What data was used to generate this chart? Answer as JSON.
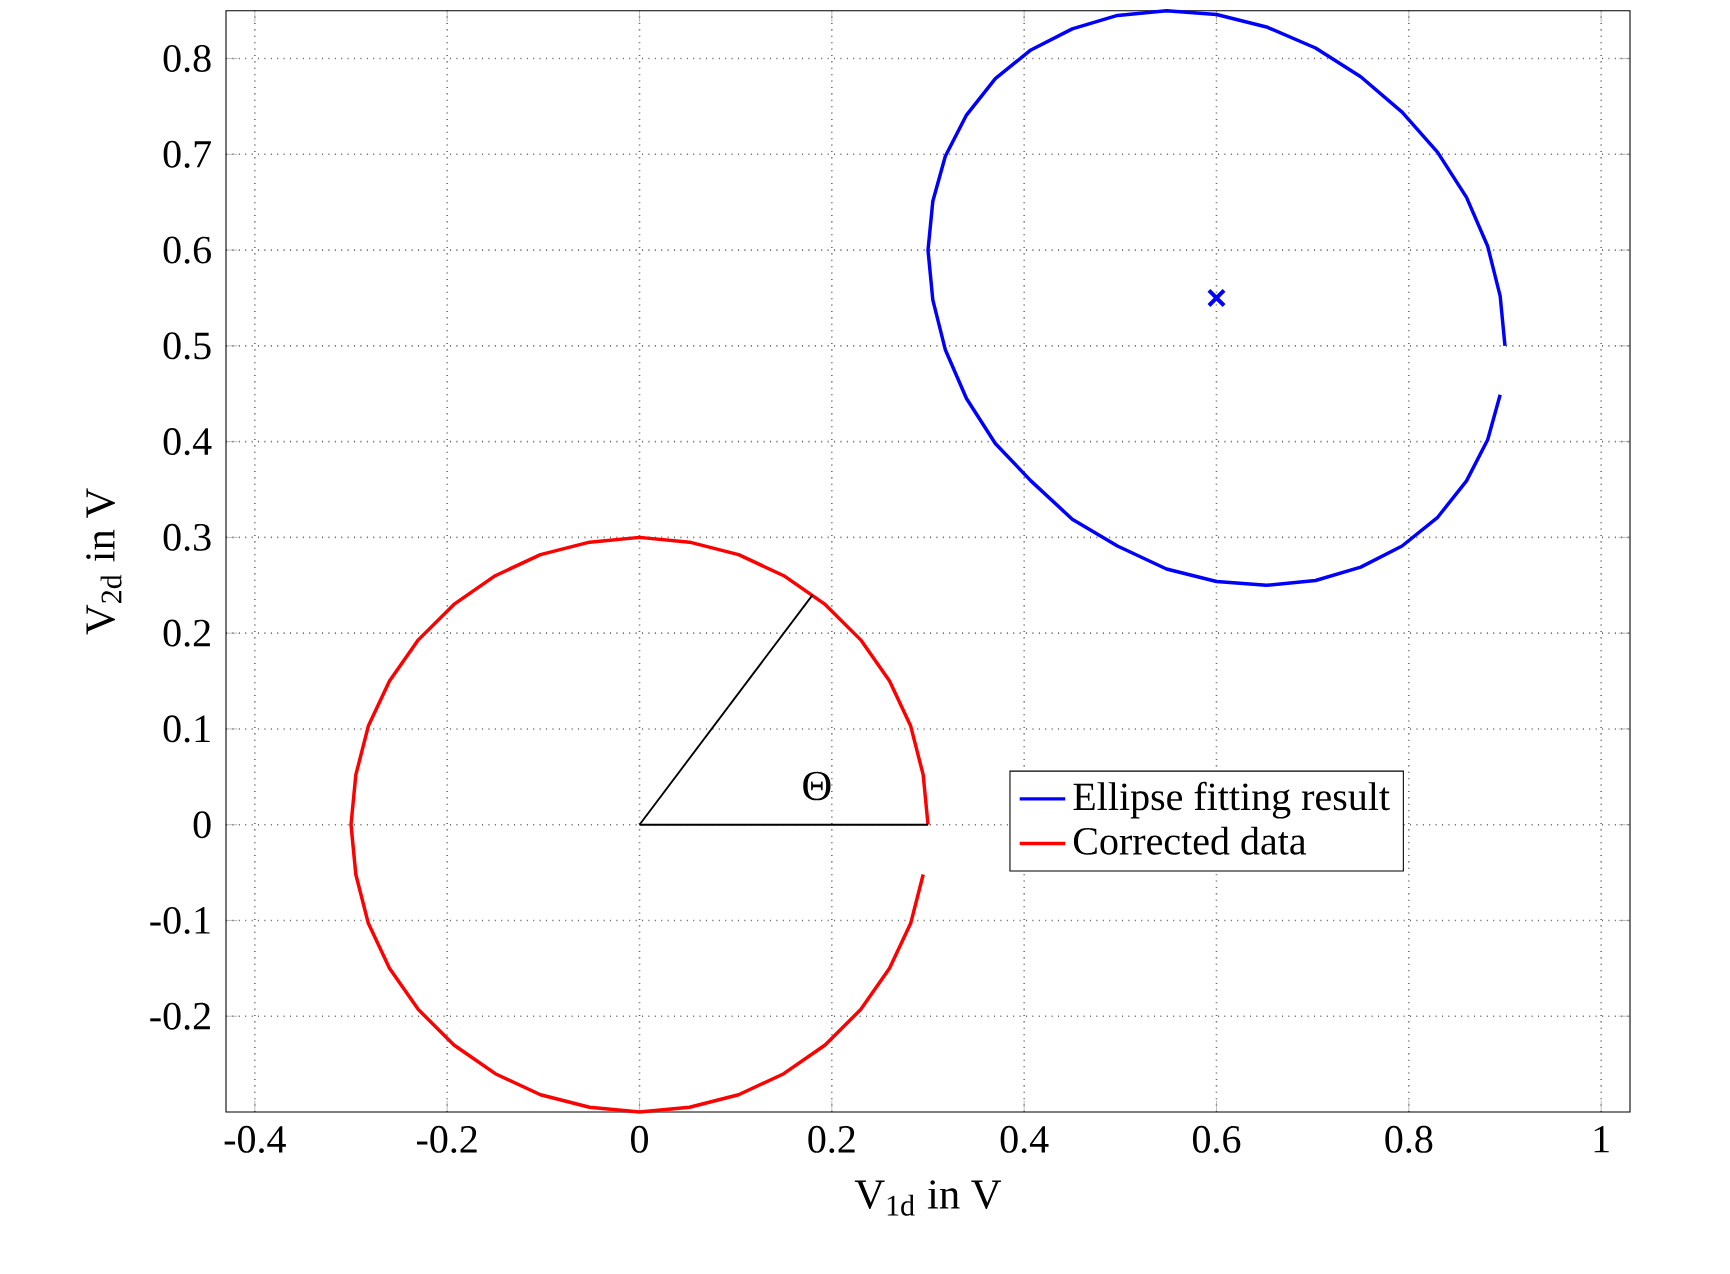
{
  "chart_data": {
    "type": "line",
    "xlabel": "V$_{1d}$ in V",
    "ylabel": "V$_{2d}$ in V",
    "xlim": [
      -0.43,
      1.03
    ],
    "ylim": [
      -0.3,
      0.85
    ],
    "xticks": [
      -0.4,
      -0.2,
      0,
      0.2,
      0.4,
      0.6,
      0.8,
      1
    ],
    "yticks": [
      -0.2,
      -0.1,
      0,
      0.1,
      0.2,
      0.3,
      0.4,
      0.5,
      0.6,
      0.7,
      0.8
    ],
    "grid": true,
    "legend": "right",
    "line_style": "solid",
    "annotations": [
      "Θ"
    ],
    "series": [
      {
        "name": "Ellipse fitting result",
        "color": "#0000ff",
        "x": [
          0.9,
          0.895,
          0.882,
          0.86,
          0.83,
          0.793,
          0.75,
          0.703,
          0.652,
          0.6,
          0.548,
          0.497,
          0.45,
          0.407,
          0.37,
          0.34,
          0.318,
          0.305,
          0.3,
          0.305,
          0.318,
          0.34,
          0.37,
          0.407,
          0.45,
          0.497,
          0.548,
          0.6,
          0.652,
          0.703,
          0.75,
          0.793,
          0.83,
          0.86,
          0.882,
          0.895
        ],
        "values": [
          0.5,
          0.552,
          0.604,
          0.655,
          0.702,
          0.744,
          0.781,
          0.811,
          0.833,
          0.846,
          0.85,
          0.845,
          0.831,
          0.809,
          0.779,
          0.741,
          0.698,
          0.651,
          0.6,
          0.548,
          0.496,
          0.445,
          0.398,
          0.359,
          0.319,
          0.291,
          0.267,
          0.254,
          0.25,
          0.255,
          0.269,
          0.291,
          0.321,
          0.359,
          0.402,
          0.449
        ]
      },
      {
        "name": "Corrected data",
        "color": "#ff0000",
        "x": [
          0.3,
          0.295,
          0.282,
          0.26,
          0.23,
          0.193,
          0.15,
          0.103,
          0.052,
          0,
          -0.052,
          -0.103,
          -0.15,
          -0.193,
          -0.23,
          -0.26,
          -0.282,
          -0.295,
          -0.3,
          -0.295,
          -0.282,
          -0.26,
          -0.23,
          -0.193,
          -0.15,
          -0.103,
          -0.052,
          0,
          0.052,
          0.103,
          0.15,
          0.193,
          0.23,
          0.26,
          0.282,
          0.295
        ],
        "values": [
          0,
          0.052,
          0.103,
          0.15,
          0.193,
          0.23,
          0.26,
          0.282,
          0.295,
          0.3,
          0.295,
          0.282,
          0.26,
          0.23,
          0.193,
          0.15,
          0.103,
          0.052,
          0,
          -0.052,
          -0.103,
          -0.15,
          -0.193,
          -0.23,
          -0.26,
          -0.282,
          -0.295,
          -0.3,
          -0.295,
          -0.282,
          -0.26,
          -0.23,
          -0.193,
          -0.15,
          -0.103,
          -0.052
        ]
      },
      {
        "color": "#0000ff",
        "type": "scatter",
        "marker": "cross",
        "x": [
          0.6
        ],
        "values": [
          0.55
        ]
      },
      {
        "color": "#000000",
        "x": [
          0,
          0.3
        ],
        "values": [
          0,
          0
        ]
      },
      {
        "color": "#000000",
        "x": [
          0,
          0.18
        ],
        "values": [
          0,
          0.24
        ]
      }
    ]
  }
}
